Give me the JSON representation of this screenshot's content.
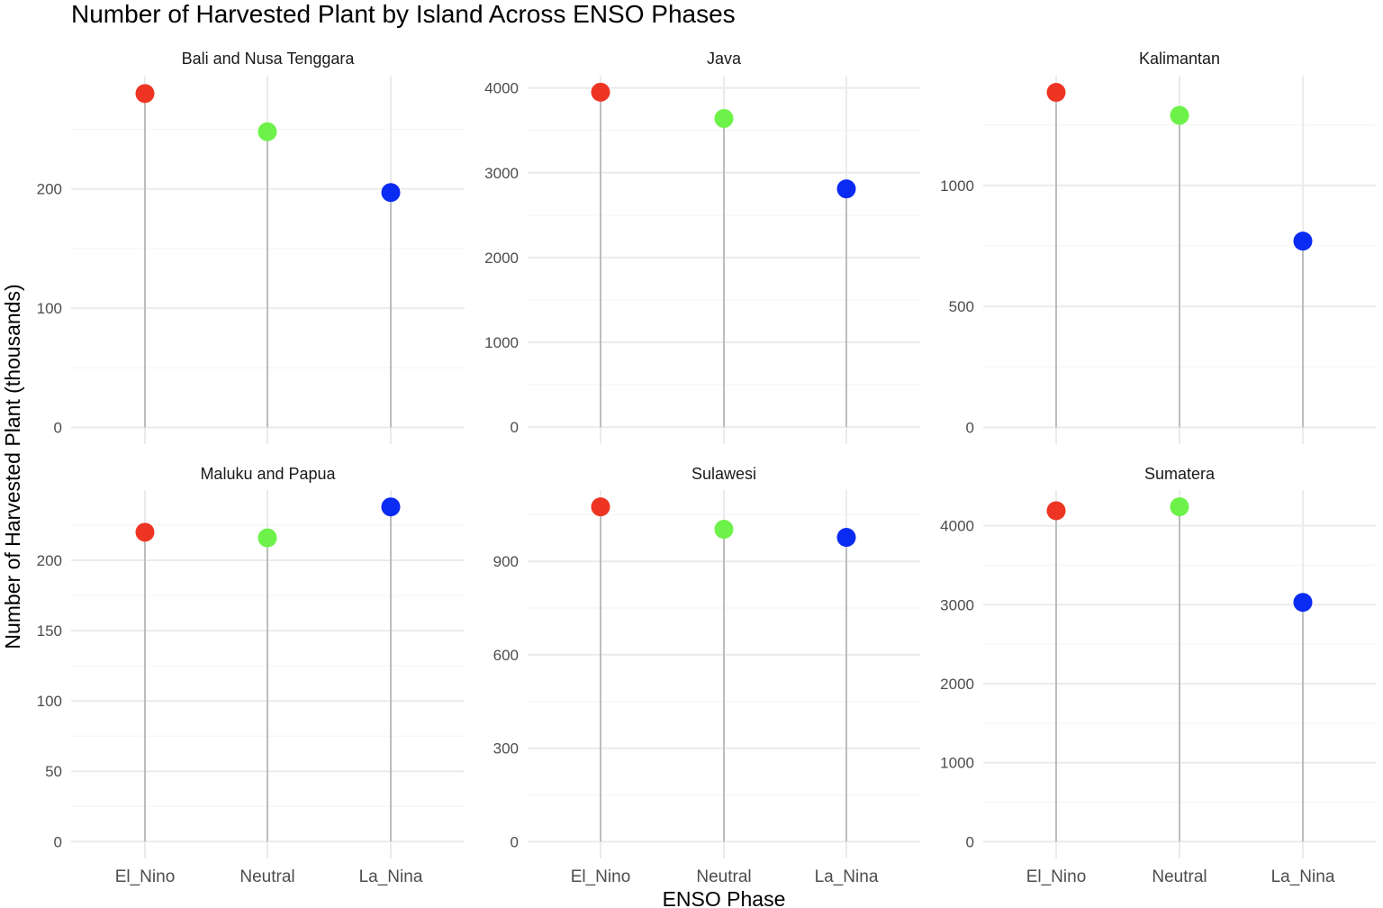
{
  "chart_data": {
    "type": "lollipop",
    "title": "Number of Harvested Plant by Island Across ENSO Phases",
    "xlabel": "ENSO Phase",
    "ylabel": "Number of Harvested Plant (thousands)",
    "categories": [
      "El_Nino",
      "Neutral",
      "La_Nina"
    ],
    "colors": {
      "El_Nino": "#EE3524",
      "Neutral": "#6DF249",
      "La_Nina": "#0A2BF2",
      "stem": "#BDBDBD",
      "grid_major": "#EBEBEB",
      "grid_minor": "#F5F5F5"
    },
    "grid": true,
    "facets": [
      {
        "island": "Bali and Nusa Tenggara",
        "values": [
          280,
          248,
          197
        ],
        "yticks": [
          0,
          100,
          200
        ],
        "ylim": [
          -14,
          295
        ]
      },
      {
        "island": "Java",
        "values": [
          3950,
          3640,
          2810
        ],
        "yticks": [
          0,
          1000,
          2000,
          3000,
          4000
        ],
        "ylim": [
          -200,
          4145
        ]
      },
      {
        "island": "Kalimantan",
        "values": [
          1385,
          1290,
          770
        ],
        "yticks": [
          0,
          500,
          1000
        ],
        "ylim": [
          -69,
          1454
        ]
      },
      {
        "island": "Maluku and Papua",
        "values": [
          220,
          216,
          238
        ],
        "yticks": [
          0,
          50,
          100,
          150,
          200
        ],
        "ylim": [
          -12,
          250
        ]
      },
      {
        "island": "Sulawesi",
        "values": [
          1075,
          1003,
          977
        ],
        "yticks": [
          0,
          300,
          600,
          900
        ],
        "ylim": [
          -54,
          1129
        ]
      },
      {
        "island": "Sumatera",
        "values": [
          4190,
          4240,
          3030
        ],
        "yticks": [
          0,
          1000,
          2000,
          3000,
          4000
        ],
        "ylim": [
          -212,
          4452
        ]
      }
    ]
  }
}
